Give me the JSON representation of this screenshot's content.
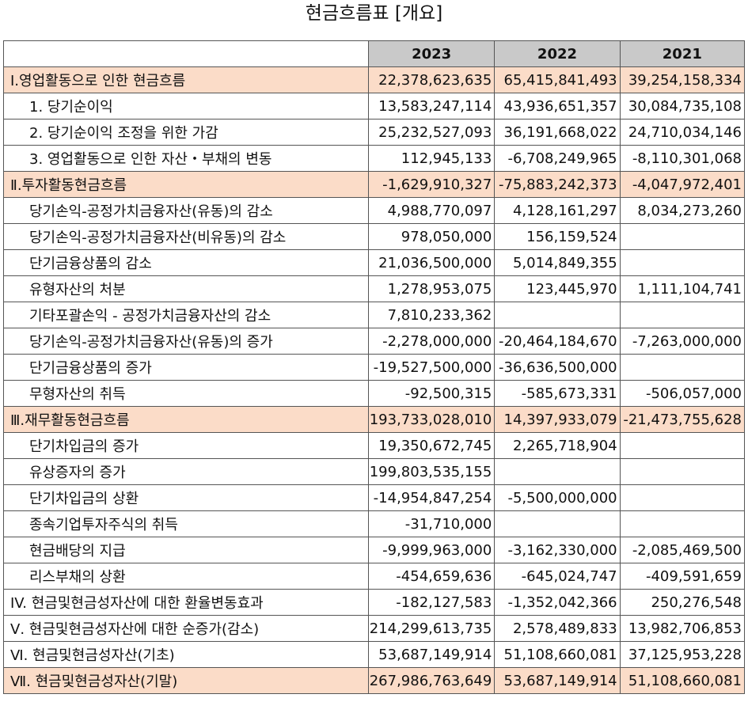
{
  "title": "현금흐름표 [개요]",
  "columns": [
    "2023",
    "2022",
    "2021"
  ],
  "rows": [
    {
      "label": "Ⅰ.영업활동으로 인한 현금흐름",
      "section": true,
      "indent": false,
      "values": [
        "22,378,623,635",
        "65,415,841,493",
        "39,254,158,334"
      ]
    },
    {
      "label": "1. 당기순이익",
      "section": false,
      "indent": true,
      "values": [
        "13,583,247,114",
        "43,936,651,357",
        "30,084,735,108"
      ]
    },
    {
      "label": "2. 당기순이익 조정을 위한 가감",
      "section": false,
      "indent": true,
      "values": [
        "25,232,527,093",
        "36,191,668,022",
        "24,710,034,146"
      ]
    },
    {
      "label": "3. 영업활동으로 인한 자산・부채의 변동",
      "section": false,
      "indent": true,
      "values": [
        "112,945,133",
        "-6,708,249,965",
        "-8,110,301,068"
      ]
    },
    {
      "label": "Ⅱ.투자활동현금흐름",
      "section": true,
      "indent": false,
      "values": [
        "-1,629,910,327",
        "-75,883,242,373",
        "-4,047,972,401"
      ]
    },
    {
      "label": "당기손익-공정가치금융자산(유동)의 감소",
      "section": false,
      "indent": true,
      "values": [
        "4,988,770,097",
        "4,128,161,297",
        "8,034,273,260"
      ]
    },
    {
      "label": "당기손익-공정가치금융자산(비유동)의 감소",
      "section": false,
      "indent": true,
      "values": [
        "978,050,000",
        "156,159,524",
        ""
      ]
    },
    {
      "label": "단기금융상품의 감소",
      "section": false,
      "indent": true,
      "values": [
        "21,036,500,000",
        "5,014,849,355",
        ""
      ]
    },
    {
      "label": "유형자산의 처분",
      "section": false,
      "indent": true,
      "values": [
        "1,278,953,075",
        "123,445,970",
        "1,111,104,741"
      ]
    },
    {
      "label": "기타포괄손익 - 공정가치금융자산의 감소",
      "section": false,
      "indent": true,
      "values": [
        "7,810,233,362",
        "",
        ""
      ]
    },
    {
      "label": "당기손익-공정가치금융자산(유동)의 증가",
      "section": false,
      "indent": true,
      "values": [
        "-2,278,000,000",
        "-20,464,184,670",
        "-7,263,000,000"
      ]
    },
    {
      "label": "단기금융상품의 증가",
      "section": false,
      "indent": true,
      "values": [
        "-19,527,500,000",
        "-36,636,500,000",
        ""
      ]
    },
    {
      "label": "무형자산의 취득",
      "section": false,
      "indent": true,
      "values": [
        "-92,500,315",
        "-585,673,331",
        "-506,057,000"
      ]
    },
    {
      "label": "Ⅲ.재무활동현금흐름",
      "section": true,
      "indent": false,
      "values": [
        "193,733,028,010",
        "14,397,933,079",
        "-21,473,755,628"
      ]
    },
    {
      "label": "단기차입금의 증가",
      "section": false,
      "indent": true,
      "values": [
        "19,350,672,745",
        "2,265,718,904",
        ""
      ]
    },
    {
      "label": "유상증자의 증가",
      "section": false,
      "indent": true,
      "values": [
        "199,803,535,155",
        "",
        ""
      ]
    },
    {
      "label": "단기차입금의 상환",
      "section": false,
      "indent": true,
      "values": [
        "-14,954,847,254",
        "-5,500,000,000",
        ""
      ]
    },
    {
      "label": "종속기업투자주식의 취득",
      "section": false,
      "indent": true,
      "values": [
        "-31,710,000",
        "",
        ""
      ]
    },
    {
      "label": "현금배당의 지급",
      "section": false,
      "indent": true,
      "values": [
        "-9,999,963,000",
        "-3,162,330,000",
        "-2,085,469,500"
      ]
    },
    {
      "label": "리스부채의 상환",
      "section": false,
      "indent": true,
      "values": [
        "-454,659,636",
        "-645,024,747",
        "-409,591,659"
      ]
    },
    {
      "label": "IV. 현금및현금성자산에 대한 환율변동효과",
      "section": false,
      "indent": false,
      "values": [
        "-182,127,583",
        "-1,352,042,366",
        "250,276,548"
      ]
    },
    {
      "label": "Ⅴ. 현금및현금성자산에 대한 순증가(감소)",
      "section": false,
      "indent": false,
      "values": [
        "214,299,613,735",
        "2,578,489,833",
        "13,982,706,853"
      ]
    },
    {
      "label": "Ⅵ. 현금및현금성자산(기초)",
      "section": false,
      "indent": false,
      "values": [
        "53,687,149,914",
        "51,108,660,081",
        "37,125,953,228"
      ]
    },
    {
      "label": "Ⅶ. 현금및현금성자산(기말)",
      "section": true,
      "indent": false,
      "values": [
        "267,986,763,649",
        "53,687,149,914",
        "51,108,660,081"
      ]
    }
  ],
  "colors": {
    "section_bg": "#fbdcc8",
    "header_bg": "#c9c9c9"
  }
}
